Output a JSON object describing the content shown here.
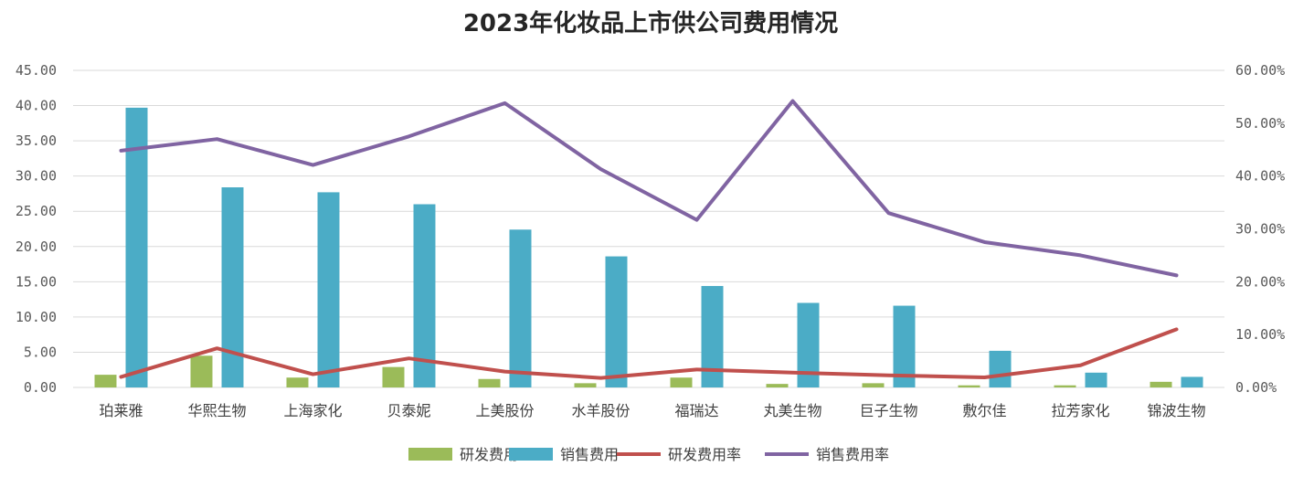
{
  "chart_data": {
    "type": "bar",
    "title": "2023年化妆品上市供公司费用情况",
    "categories": [
      "珀莱雅",
      "华熙生物",
      "上海家化",
      "贝泰妮",
      "上美股份",
      "水羊股份",
      "福瑞达",
      "丸美生物",
      "巨子生物",
      "敷尔佳",
      "拉芳家化",
      "锦波生物"
    ],
    "y_left": {
      "ylim": [
        0,
        45
      ],
      "ticks": [
        "0.00",
        "5.00",
        "10.00",
        "15.00",
        "20.00",
        "25.00",
        "30.00",
        "35.00",
        "40.00",
        "45.00"
      ]
    },
    "y_right": {
      "ylim": [
        0,
        60
      ],
      "ticks": [
        "0.00%",
        "10.00%",
        "20.00%",
        "30.00%",
        "40.00%",
        "50.00%",
        "60.00%"
      ]
    },
    "series": [
      {
        "name": "研发费用",
        "kind": "bar",
        "axis": "left",
        "color": "#9bbb59",
        "values": [
          1.8,
          4.5,
          1.4,
          2.9,
          1.2,
          0.6,
          1.4,
          0.5,
          0.6,
          0.3,
          0.3,
          0.8
        ]
      },
      {
        "name": "销售费用",
        "kind": "bar",
        "axis": "left",
        "color": "#4bacc6",
        "values": [
          39.7,
          28.4,
          27.7,
          26.0,
          22.4,
          18.6,
          14.4,
          12.0,
          11.6,
          5.2,
          2.1,
          1.5
        ]
      },
      {
        "name": "研发费用率",
        "kind": "line",
        "axis": "right",
        "color": "#c0504d",
        "values": [
          2.0,
          7.4,
          2.5,
          5.5,
          3.0,
          1.8,
          3.4,
          2.8,
          2.3,
          1.9,
          4.2,
          11.0
        ]
      },
      {
        "name": "销售费用率",
        "kind": "line",
        "axis": "right",
        "color": "#8064a2",
        "values": [
          44.8,
          47.0,
          42.1,
          47.5,
          53.8,
          41.3,
          31.7,
          54.2,
          33.0,
          27.5,
          25.0,
          21.2
        ]
      }
    ],
    "legend_position": "bottom",
    "grid": true
  }
}
